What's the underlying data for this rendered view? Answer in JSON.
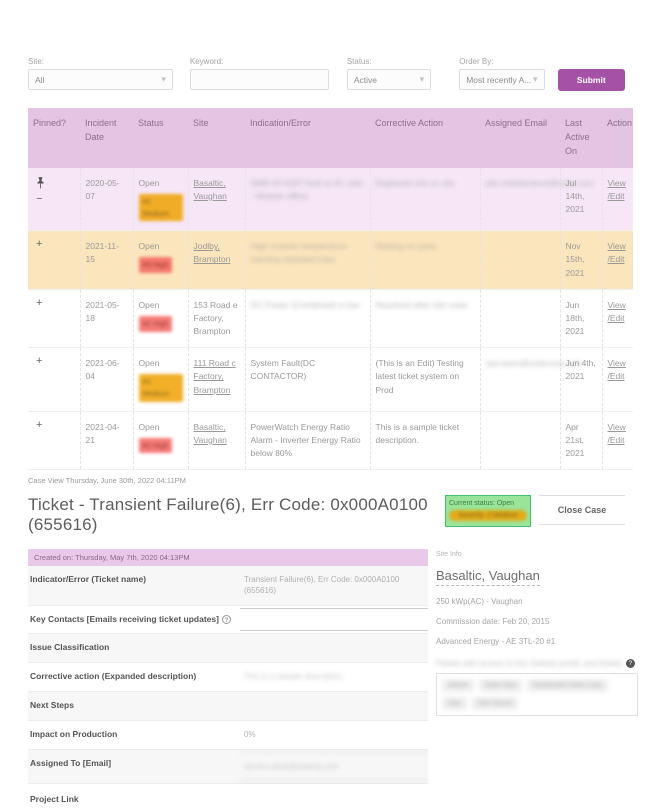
{
  "icons": {
    "chevron_down": "▾",
    "plus": "+",
    "minus": "−",
    "help": "?"
  },
  "filters": {
    "site": {
      "label": "Site:",
      "value": "All"
    },
    "keyword": {
      "label": "Keyword:",
      "value": ""
    },
    "status": {
      "label": "Status:",
      "value": "Active"
    },
    "order_by": {
      "label": "Order By:",
      "value": "Most recently A..."
    },
    "submit_label": "Submit"
  },
  "table": {
    "headers": [
      "Pinned?",
      "Incident Date",
      "Status",
      "Site",
      "Indication/Error",
      "Corrective Action",
      "Assigned Email",
      "Last Active On",
      "Action"
    ],
    "action_links": [
      "View",
      "/Edit"
    ],
    "rows": [
      {
        "pinned": true,
        "date": "2020-05-07",
        "status": "Open",
        "severity": "#2 Medium",
        "sev_level": "medium",
        "sev_blur": true,
        "site": "Basaltic, Vaughan",
        "site_link": true,
        "indication": "SMB-04 IGBT fault at AC side - Module offline",
        "indication_blur": true,
        "corrective": "Replaced unit on site",
        "corrective_blur": true,
        "email": "site.maintenance@corp.com",
        "email_blur": true,
        "last_active": "Jul 14th, 2021",
        "row_style": "purple"
      },
      {
        "pinned": false,
        "date": "2021-11-15",
        "status": "Open",
        "severity": "#3 High",
        "sev_level": "high",
        "sev_blur": true,
        "site": "Jodlby, Brampton",
        "site_link": true,
        "indication": "High inverter temperature warning repeated trips",
        "indication_blur": true,
        "corrective": "Waiting on parts",
        "corrective_blur": true,
        "email": "",
        "email_blur": false,
        "last_active": "Nov 15th, 2021",
        "row_style": "orange"
      },
      {
        "pinned": false,
        "date": "2021-05-18",
        "status": "Open",
        "severity": "#2 High",
        "sev_level": "high",
        "sev_blur": true,
        "site": "153 Road e Factory, Brampton",
        "site_link": false,
        "indication": "DC Power (Combined) is low",
        "indication_blur": true,
        "corrective": "Resolved after site reset",
        "corrective_blur": true,
        "email": "",
        "email_blur": false,
        "last_active": "Jun 18th, 2021",
        "row_style": "white"
      },
      {
        "pinned": false,
        "date": "2021-06-04",
        "status": "Open",
        "severity": "#2 Medium",
        "sev_level": "medium",
        "sev_blur": true,
        "site": "111 Road c Factory, Brampton",
        "site_link": true,
        "indication": "System Fault(DC CONTACTOR)",
        "indication_blur": false,
        "corrective": "(This is an Edit) Testing latest ticket system on Prod",
        "corrective_blur": false,
        "email": "ops.team@solarcorp.com",
        "email_blur": true,
        "last_active": "Jun 4th, 2021",
        "row_style": "white"
      },
      {
        "pinned": false,
        "date": "2021-04-21",
        "status": "Open",
        "severity": "#2 High",
        "sev_level": "high",
        "sev_blur": true,
        "site": "Basaltic, Vaughan",
        "site_link": true,
        "indication": "PowerWatch Energy Ratio Alarm - Inverter Energy Ratio below 80%",
        "indication_blur": false,
        "corrective": "This is a sample ticket description.",
        "corrective_blur": false,
        "email": "",
        "email_blur": false,
        "last_active": "Apr 21st, 2021",
        "row_style": "white"
      }
    ]
  },
  "case_view": {
    "heading": "Case View Thursday, June 30th, 2022 04:11PM"
  },
  "ticket": {
    "title": "Ticket - Transient Failure(6), Err Code: 0x000A0100 (655616)",
    "status_box": {
      "current_status": "Current status: Open",
      "severity": "Severity: 2 Medium"
    },
    "close_case_label": "Close Case",
    "created_on": "Created on: Thursday, May 7th, 2020 04:13PM",
    "fields": [
      {
        "label": "Indicator/Error (Ticket name)",
        "value": "Transient Failure(6), Err Code: 0x000A0100 (655616)",
        "help": false,
        "blur": false,
        "input": false
      },
      {
        "label": "Key Contacts [Emails receiving ticket updates]",
        "value": "",
        "help": true,
        "blur": false,
        "input": true
      },
      {
        "label": "Issue Classification",
        "value": "",
        "help": false,
        "blur": false,
        "input": false
      },
      {
        "label": "Corrective action (Expanded description)",
        "value": "This is a sample description",
        "help": false,
        "blur": true,
        "input": false
      },
      {
        "label": "Next Steps",
        "value": "",
        "help": false,
        "blur": false,
        "input": false
      },
      {
        "label": "Impact on Production",
        "value": "0%",
        "help": false,
        "blur": false,
        "input": false
      },
      {
        "label": "Assigned To [Email]",
        "value": "service.desk@solarity.com",
        "help": false,
        "blur": true,
        "input": true
      }
    ],
    "project_link_label": "Project Link"
  },
  "site_info": {
    "section_label": "Site Info",
    "name": "Basaltic, Vaughan",
    "details": [
      "250 kWp(AC) - Vaughan",
      "Commission date: Feb 20, 2015",
      "Advanced Energy - AE 3TL-20 #1"
    ],
    "parties_label": "Parties with access to this Solarity portal, and tickets",
    "chips": [
      "Admin",
      "Solar Ops",
      "Distributed Solar Corp",
      "Ops",
      "Site Owner"
    ]
  }
}
